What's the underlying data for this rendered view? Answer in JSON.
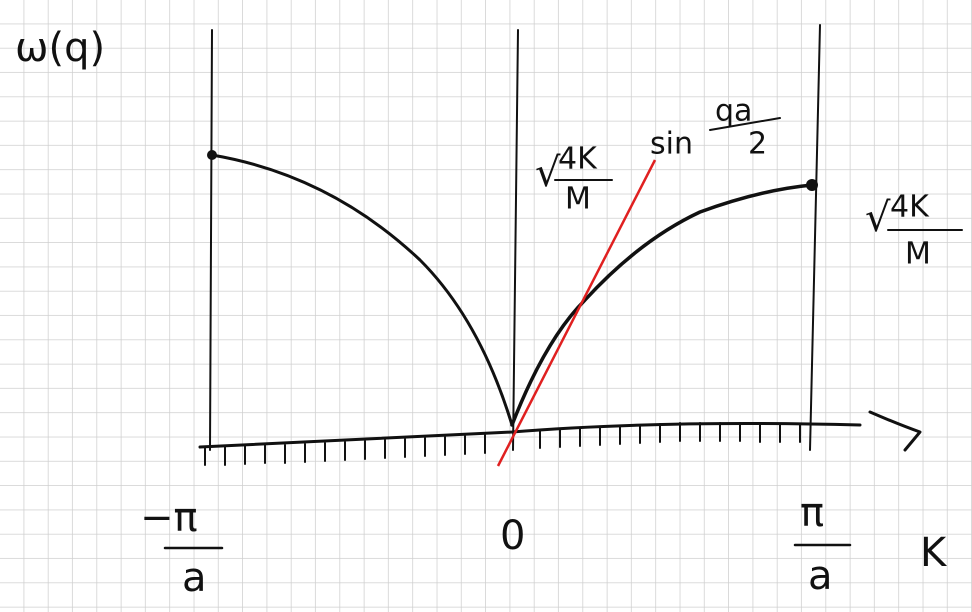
{
  "axis_labels": {
    "y": "ω(q)",
    "x": "K"
  },
  "annotations": {
    "tangent": {
      "root": "√",
      "numerator": "4K",
      "denominator": "M",
      "function": "sin",
      "arg_numerator": "qa",
      "arg_denominator": "2"
    },
    "maximum": {
      "root": "√",
      "numerator": "4K",
      "denominator": "M"
    }
  },
  "x_ticks": [
    {
      "numerator": "−π",
      "denominator": "a"
    },
    {
      "label": "0"
    },
    {
      "numerator": "π",
      "denominator": "a"
    }
  ]
}
